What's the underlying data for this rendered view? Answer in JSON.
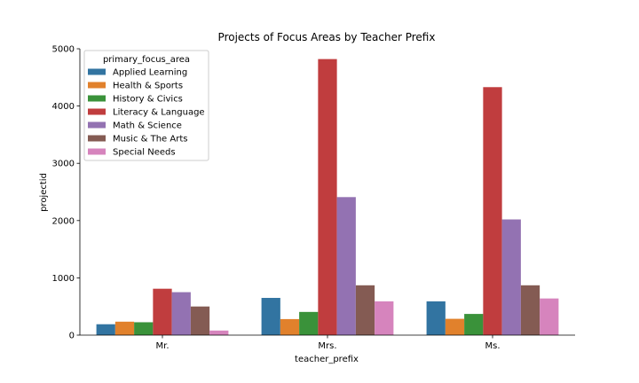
{
  "chart_data": {
    "type": "bar",
    "title": "Projects of Focus Areas by Teacher Prefix",
    "xlabel": "teacher_prefix",
    "ylabel": "projectid",
    "categories": [
      "Mr.",
      "Mrs.",
      "Ms."
    ],
    "ylim": [
      0,
      5000
    ],
    "yticks": [
      0,
      1000,
      2000,
      3000,
      4000,
      5000
    ],
    "grid": false,
    "legend": {
      "title": "primary_focus_area",
      "placement": "top-left"
    },
    "series": [
      {
        "name": "Applied Learning",
        "color": "#3274a1",
        "values": [
          190,
          650,
          590
        ]
      },
      {
        "name": "Health & Sports",
        "color": "#e1812c",
        "values": [
          235,
          280,
          285
        ]
      },
      {
        "name": "History & Civics",
        "color": "#3a923a",
        "values": [
          225,
          405,
          370
        ]
      },
      {
        "name": "Literacy & Language",
        "color": "#c03d3e",
        "values": [
          810,
          4820,
          4330
        ]
      },
      {
        "name": "Math & Science",
        "color": "#9372b2",
        "values": [
          750,
          2410,
          2020
        ]
      },
      {
        "name": "Music & The Arts",
        "color": "#845b53",
        "values": [
          500,
          870,
          870
        ]
      },
      {
        "name": "Special Needs",
        "color": "#d684bd",
        "values": [
          80,
          590,
          640
        ]
      }
    ]
  }
}
